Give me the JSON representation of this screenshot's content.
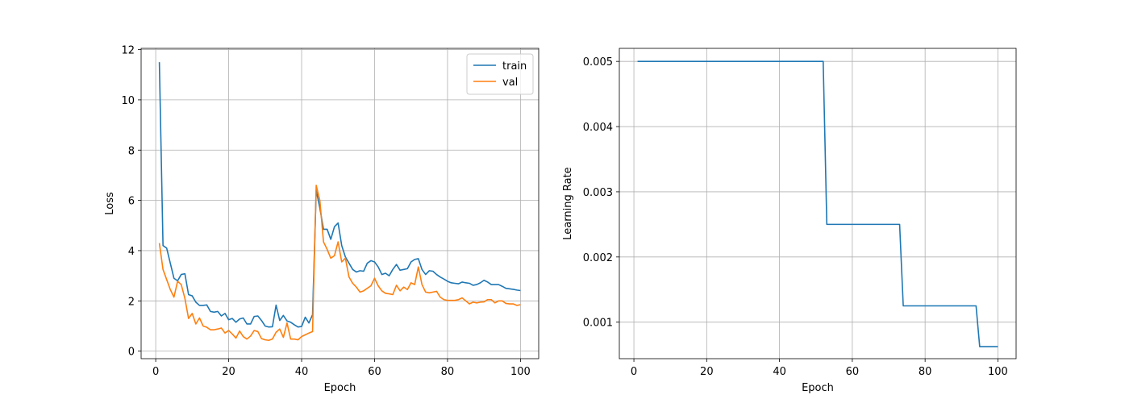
{
  "chart_data": [
    {
      "type": "line",
      "title": "",
      "xlabel": "Epoch",
      "ylabel": "Loss",
      "xlim": [
        -4,
        105
      ],
      "ylim": [
        -0.3,
        12.05
      ],
      "xticks": [
        0,
        20,
        40,
        60,
        80,
        100
      ],
      "yticks": [
        0,
        2,
        4,
        6,
        8,
        10,
        12
      ],
      "grid": true,
      "legend": "top-right",
      "series": [
        {
          "name": "train",
          "color": "#1f77b4",
          "x": [
            1,
            2,
            3,
            4,
            5,
            6,
            7,
            8,
            9,
            10,
            11,
            12,
            13,
            14,
            15,
            16,
            17,
            18,
            19,
            20,
            21,
            22,
            23,
            24,
            25,
            26,
            27,
            28,
            29,
            30,
            31,
            32,
            33,
            34,
            35,
            36,
            37,
            38,
            39,
            40,
            41,
            42,
            43,
            44,
            45,
            46,
            47,
            48,
            49,
            50,
            51,
            52,
            53,
            54,
            55,
            56,
            57,
            58,
            59,
            60,
            61,
            62,
            63,
            64,
            65,
            66,
            67,
            68,
            69,
            70,
            71,
            72,
            73,
            74,
            75,
            76,
            77,
            78,
            79,
            80,
            81,
            82,
            83,
            84,
            85,
            86,
            87,
            88,
            89,
            90,
            91,
            92,
            93,
            94,
            95,
            96,
            97,
            98,
            99,
            100
          ],
          "values": [
            11.5,
            4.2,
            4.1,
            3.5,
            2.9,
            2.8,
            3.05,
            3.08,
            2.25,
            2.2,
            1.95,
            1.82,
            1.82,
            1.84,
            1.58,
            1.55,
            1.58,
            1.4,
            1.5,
            1.25,
            1.3,
            1.15,
            1.28,
            1.32,
            1.08,
            1.08,
            1.38,
            1.4,
            1.22,
            1.0,
            0.96,
            0.97,
            1.83,
            1.22,
            1.42,
            1.2,
            1.15,
            1.05,
            0.96,
            0.98,
            1.35,
            1.12,
            1.45,
            6.4,
            5.7,
            4.85,
            4.85,
            4.45,
            4.95,
            5.1,
            4.2,
            3.75,
            3.5,
            3.25,
            3.15,
            3.2,
            3.18,
            3.5,
            3.6,
            3.55,
            3.35,
            3.05,
            3.1,
            3.0,
            3.25,
            3.45,
            3.22,
            3.25,
            3.28,
            3.55,
            3.65,
            3.68,
            3.25,
            3.05,
            3.2,
            3.18,
            3.05,
            2.95,
            2.87,
            2.78,
            2.72,
            2.7,
            2.68,
            2.75,
            2.72,
            2.7,
            2.62,
            2.65,
            2.72,
            2.82,
            2.75,
            2.65,
            2.65,
            2.65,
            2.58,
            2.5,
            2.48,
            2.46,
            2.43,
            2.41
          ]
        },
        {
          "name": "val",
          "color": "#ff7f0e",
          "x": [
            1,
            2,
            3,
            4,
            5,
            6,
            7,
            8,
            9,
            10,
            11,
            12,
            13,
            14,
            15,
            16,
            17,
            18,
            19,
            20,
            21,
            22,
            23,
            24,
            25,
            26,
            27,
            28,
            29,
            30,
            31,
            32,
            33,
            34,
            35,
            36,
            37,
            38,
            39,
            40,
            41,
            42,
            43,
            44,
            45,
            46,
            47,
            48,
            49,
            50,
            51,
            52,
            53,
            54,
            55,
            56,
            57,
            58,
            59,
            60,
            61,
            62,
            63,
            64,
            65,
            66,
            67,
            68,
            69,
            70,
            71,
            72,
            73,
            74,
            75,
            76,
            77,
            78,
            79,
            80,
            81,
            82,
            83,
            84,
            85,
            86,
            87,
            88,
            89,
            90,
            91,
            92,
            93,
            94,
            95,
            96,
            97,
            98,
            99,
            100
          ],
          "values": [
            4.3,
            3.25,
            2.85,
            2.45,
            2.15,
            2.78,
            2.65,
            2.1,
            1.3,
            1.5,
            1.08,
            1.32,
            1.0,
            0.95,
            0.85,
            0.85,
            0.88,
            0.92,
            0.72,
            0.82,
            0.68,
            0.52,
            0.8,
            0.58,
            0.48,
            0.6,
            0.82,
            0.78,
            0.5,
            0.45,
            0.43,
            0.48,
            0.75,
            0.88,
            0.55,
            1.12,
            0.48,
            0.48,
            0.45,
            0.58,
            0.65,
            0.72,
            0.78,
            6.6,
            6.0,
            4.35,
            4.05,
            3.7,
            3.8,
            4.35,
            3.55,
            3.7,
            2.95,
            2.7,
            2.55,
            2.35,
            2.4,
            2.5,
            2.6,
            2.9,
            2.6,
            2.4,
            2.3,
            2.28,
            2.25,
            2.62,
            2.4,
            2.55,
            2.45,
            2.72,
            2.65,
            3.35,
            2.65,
            2.35,
            2.32,
            2.35,
            2.38,
            2.15,
            2.05,
            2.02,
            2.02,
            2.02,
            2.05,
            2.12,
            2.0,
            1.88,
            1.95,
            1.92,
            1.95,
            1.96,
            2.05,
            2.05,
            1.92,
            2.0,
            2.0,
            1.9,
            1.88,
            1.88,
            1.82,
            1.85
          ]
        }
      ]
    },
    {
      "type": "line",
      "title": "",
      "xlabel": "Epoch",
      "ylabel": "Learning Rate",
      "xlim": [
        -4,
        105
      ],
      "ylim": [
        0.00044,
        0.0052
      ],
      "xticks": [
        0,
        20,
        40,
        60,
        80,
        100
      ],
      "yticks": [
        0.001,
        0.002,
        0.003,
        0.004,
        0.005
      ],
      "grid": true,
      "series": [
        {
          "color": "#1f77b4",
          "x": [
            1,
            52,
            53,
            73,
            74,
            94,
            95,
            100
          ],
          "values": [
            0.005,
            0.005,
            0.0025,
            0.0025,
            0.00125,
            0.00125,
            0.000625,
            0.000625
          ]
        }
      ]
    }
  ]
}
